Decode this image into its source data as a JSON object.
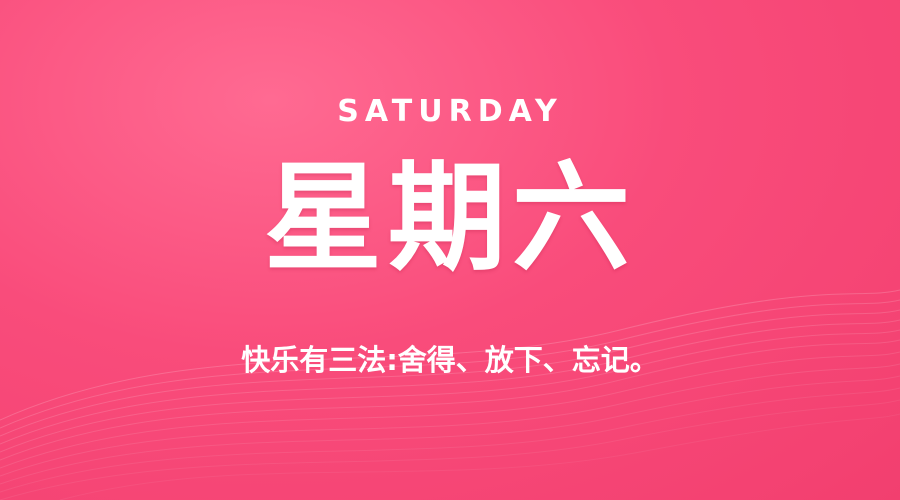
{
  "poster": {
    "day_en": "SATURDAY",
    "day_cn": "星期六",
    "quote": "快乐有三法:舍得、放下、忘记。"
  },
  "colors": {
    "background": "#f94c7b",
    "text": "#ffffff"
  }
}
